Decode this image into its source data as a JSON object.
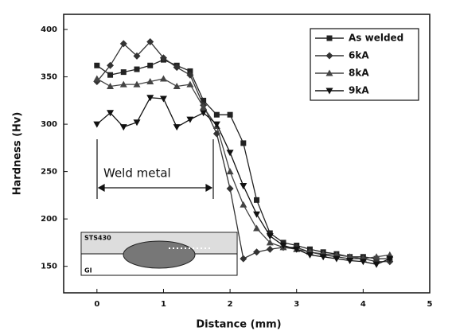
{
  "chart_data": {
    "type": "line",
    "x_label": "Distance (mm)",
    "y_label": "Hardness (Hv)",
    "x": [
      0,
      0.2,
      0.4,
      0.6,
      0.8,
      1.0,
      1.2,
      1.4,
      1.6,
      1.8,
      2.0,
      2.2,
      2.4,
      2.6,
      2.8,
      3.0,
      3.2,
      3.4,
      3.6,
      3.8,
      4.0,
      4.2,
      4.4
    ],
    "series": [
      {
        "name": "As welded",
        "color": "#222222",
        "marker": "square",
        "values": [
          362,
          352,
          355,
          358,
          362,
          368,
          362,
          356,
          325,
          310,
          310,
          280,
          220,
          185,
          175,
          172,
          168,
          165,
          163,
          160,
          160,
          158,
          158
        ]
      },
      {
        "name": "6kA",
        "color": "#333333",
        "marker": "diamond",
        "values": [
          345,
          362,
          385,
          372,
          387,
          370,
          360,
          352,
          320,
          290,
          232,
          158,
          165,
          168,
          170,
          170,
          165,
          162,
          160,
          158,
          158,
          155,
          155
        ]
      },
      {
        "name": "8kA",
        "color": "#444444",
        "marker": "triangle",
        "values": [
          348,
          340,
          342,
          342,
          345,
          348,
          340,
          342,
          318,
          298,
          250,
          215,
          190,
          175,
          170,
          168,
          165,
          163,
          162,
          160,
          158,
          160,
          162
        ]
      },
      {
        "name": "9kA",
        "color": "#111111",
        "marker": "triangle-down",
        "values": [
          300,
          312,
          297,
          302,
          328,
          327,
          297,
          305,
          312,
          300,
          270,
          235,
          205,
          182,
          172,
          168,
          162,
          160,
          158,
          156,
          155,
          152,
          158
        ]
      }
    ],
    "xlim": [
      -0.5,
      5
    ],
    "xticks": [
      0,
      1,
      2,
      3,
      4,
      5
    ],
    "ylim": [
      122,
      416
    ],
    "yticks": [
      150,
      200,
      250,
      300,
      350,
      400
    ],
    "legend": "upper right",
    "annotations": [
      "Weld metal",
      "STS430",
      "GI"
    ]
  }
}
